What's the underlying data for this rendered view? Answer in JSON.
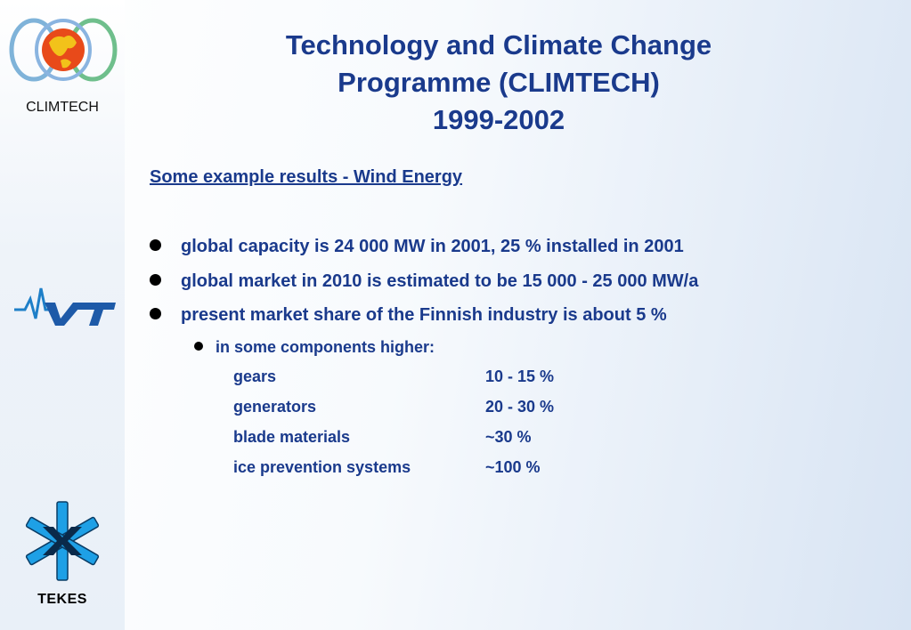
{
  "sidebar": {
    "climtech_label": "CLIMTECH",
    "tekes_label": "TEKES",
    "logos": [
      "climtech-globe-logo",
      "vtt-logo",
      "tekes-logo"
    ]
  },
  "title": {
    "line1": "Technology and Climate Change",
    "line2": "Programme (CLIMTECH)",
    "line3": "1999-2002"
  },
  "subheading": "Some example results - Wind Energy",
  "bullets": [
    "global capacity is 24 000 MW in 2001, 25 % installed in 2001",
    "global market in 2010 is estimated to be 15 000 - 25 000 MW/a",
    "present market share of the Finnish industry is about 5 %"
  ],
  "sub_bullet": "in some components higher:",
  "components": [
    {
      "name": "gears",
      "value": "10 - 15 %"
    },
    {
      "name": "generators",
      "value": "20 - 30 %"
    },
    {
      "name": "blade materials",
      "value": "~30 %"
    },
    {
      "name": "ice prevention systems",
      "value": "~100 %"
    }
  ],
  "colors": {
    "title_text": "#1a3a8c",
    "bullet_dot": "#000000",
    "tekes_blue": "#1ea0e6",
    "vtt_blue": "#1e5aa8"
  }
}
